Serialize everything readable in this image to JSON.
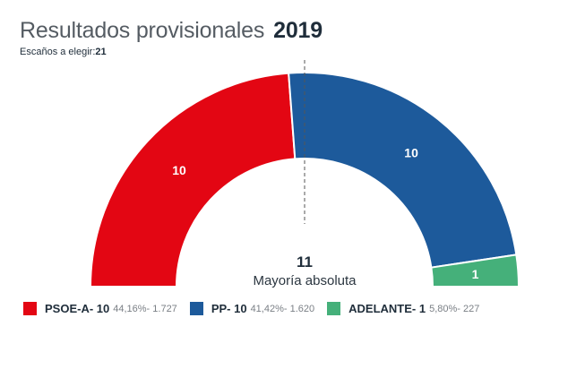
{
  "header": {
    "title": "Resultados provisionales",
    "year": "2019",
    "seats_label": "Escaños a elegir:",
    "seats_value": "21"
  },
  "majority": {
    "value": "11",
    "label": "Mayoría absoluta"
  },
  "legend": [
    {
      "name": "PSOE-A- 10",
      "stats": "44,16%- 1.727",
      "color": "#e30613"
    },
    {
      "name": "PP- 10",
      "stats": "41,42%- 1.620",
      "color": "#1d5a9b"
    },
    {
      "name": "ADELANTE- 1",
      "stats": "5,80%- 227",
      "color": "#45b07a"
    }
  ],
  "chart_data": {
    "type": "pie",
    "subtype": "semicircle-parliament",
    "title": "Resultados provisionales 2019",
    "total_seats": 21,
    "majority": 11,
    "categories": [
      "PSOE-A",
      "PP",
      "ADELANTE"
    ],
    "values": [
      10,
      10,
      1
    ],
    "vote_percent": [
      44.16,
      41.42,
      5.8
    ],
    "votes": [
      1727,
      1620,
      227
    ],
    "colors": [
      "#e30613",
      "#1d5a9b",
      "#45b07a"
    ],
    "data_labels": [
      "10",
      "10",
      "1"
    ],
    "majority_line": "dashed vertical at center"
  }
}
